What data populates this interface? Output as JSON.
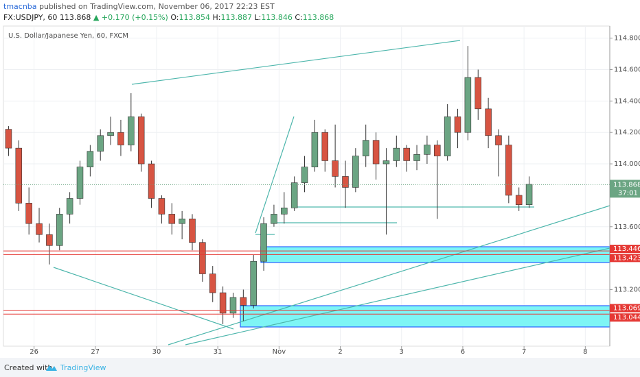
{
  "header": {
    "user": "tmacnba",
    "published": "published on TradingView.com, November 06, 2017 22:23 EST",
    "symbol": "FX:USDJPY, 60",
    "last": "113.868",
    "change": "▲ +0.170 (+0.15%)",
    "o_label": "O:",
    "o": "113.854",
    "h_label": "H:",
    "h": "113.887",
    "l_label": "L:",
    "l": "113.846",
    "c_label": "C:",
    "c": "113.868"
  },
  "chart_data": {
    "type": "candlestick",
    "title": "U.S. Dollar/Japanese Yen, 60, FXCM",
    "up_color": "#6ba583",
    "down_color": "#d75442",
    "open": [
      114.22,
      114.1,
      113.75,
      113.62,
      113.55,
      113.48,
      113.68,
      113.78,
      113.98,
      114.08,
      114.18,
      114.2,
      114.12,
      114.3,
      114.0,
      113.78,
      113.68,
      113.62,
      113.65,
      113.5,
      113.3,
      113.18,
      113.05,
      113.15,
      113.1,
      113.38,
      113.62,
      113.68,
      113.72,
      113.88,
      113.98,
      114.2,
      114.02,
      113.92,
      113.85,
      114.05,
      114.15,
      114.0,
      114.02,
      114.1,
      114.02,
      114.06,
      114.12,
      114.05,
      114.3,
      114.2,
      114.55,
      114.35,
      114.18,
      114.12,
      113.8,
      113.74
    ],
    "high": [
      114.24,
      114.15,
      113.85,
      113.72,
      113.62,
      113.72,
      113.82,
      114.02,
      114.12,
      114.22,
      114.3,
      114.28,
      114.45,
      114.32,
      114.02,
      113.8,
      113.75,
      113.7,
      113.68,
      113.52,
      113.35,
      113.22,
      113.18,
      113.2,
      113.42,
      113.66,
      113.74,
      113.82,
      113.92,
      114.05,
      114.28,
      114.22,
      114.25,
      114.02,
      114.1,
      114.25,
      114.2,
      114.1,
      114.18,
      114.12,
      114.12,
      114.18,
      114.15,
      114.38,
      114.35,
      114.75,
      114.6,
      114.42,
      114.22,
      114.18,
      113.85,
      113.92
    ],
    "low": [
      114.05,
      113.7,
      113.55,
      113.5,
      113.36,
      113.45,
      113.62,
      113.74,
      113.92,
      114.02,
      114.12,
      114.05,
      114.08,
      113.95,
      113.72,
      113.62,
      113.55,
      113.52,
      113.45,
      113.25,
      113.12,
      112.98,
      113.02,
      113.0,
      113.08,
      113.32,
      113.6,
      113.62,
      113.7,
      113.82,
      113.95,
      113.95,
      113.85,
      113.72,
      113.82,
      113.98,
      113.9,
      113.55,
      113.98,
      113.95,
      113.96,
      114.0,
      113.65,
      114.02,
      114.1,
      114.15,
      114.28,
      114.1,
      113.92,
      113.75,
      113.7,
      113.72
    ],
    "close": [
      114.1,
      113.75,
      113.62,
      113.55,
      113.48,
      113.68,
      113.78,
      113.98,
      114.08,
      114.18,
      114.2,
      114.12,
      114.3,
      114.0,
      113.78,
      113.68,
      113.62,
      113.65,
      113.5,
      113.3,
      113.18,
      113.05,
      113.15,
      113.1,
      113.38,
      113.62,
      113.68,
      113.72,
      113.88,
      113.98,
      114.2,
      114.02,
      113.92,
      113.85,
      114.05,
      114.15,
      114.0,
      114.02,
      114.1,
      114.02,
      114.06,
      114.12,
      114.05,
      114.3,
      114.2,
      114.55,
      114.35,
      114.18,
      114.12,
      113.8,
      113.74,
      113.87
    ],
    "xlim": [
      0,
      59.4
    ],
    "xticks": [
      {
        "value": 3,
        "label": "26"
      },
      {
        "value": 9,
        "label": "27"
      },
      {
        "value": 15,
        "label": "30"
      },
      {
        "value": 21,
        "label": "31"
      },
      {
        "value": 27,
        "label": "Nov"
      },
      {
        "value": 33,
        "label": "2"
      },
      {
        "value": 39,
        "label": "3"
      },
      {
        "value": 45,
        "label": "6"
      },
      {
        "value": 51,
        "label": "7"
      },
      {
        "value": 57,
        "label": "8"
      }
    ],
    "ylim": [
      112.84,
      114.877
    ],
    "yticks": [
      {
        "value": 114.8,
        "label": "114.800"
      },
      {
        "value": 114.6,
        "label": "114.600"
      },
      {
        "value": 114.4,
        "label": "114.400"
      },
      {
        "value": 114.2,
        "label": "114.200"
      },
      {
        "value": 114.0,
        "label": "114.000"
      },
      {
        "value": 113.6,
        "label": "113.600"
      },
      {
        "value": 113.2,
        "label": "113.200"
      }
    ],
    "grid": true,
    "levels": [
      113.446,
      113.423,
      113.069,
      113.044
    ],
    "level_color": "#e53935",
    "current_price": 113.868,
    "countdown": "37:01"
  },
  "footer": {
    "created": "Created with",
    "brand": "TradingView"
  }
}
